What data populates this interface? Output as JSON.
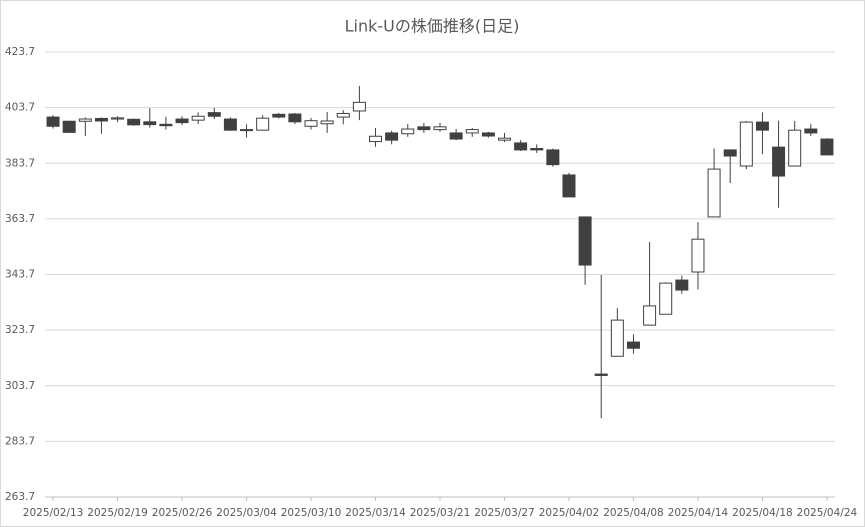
{
  "chart_data": {
    "type": "candlestick",
    "title": "Link-Uの株価推移(日足)",
    "categories": [
      "2025/02/13",
      null,
      null,
      null,
      "2025/02/19",
      null,
      null,
      null,
      "2025/02/26",
      null,
      null,
      null,
      "2025/03/04",
      null,
      null,
      null,
      "2025/03/10",
      null,
      null,
      null,
      "2025/03/14",
      null,
      null,
      null,
      "2025/03/21",
      null,
      null,
      null,
      "2025/03/27",
      null,
      null,
      null,
      "2025/04/02",
      null,
      null,
      null,
      "2025/04/08",
      null,
      null,
      null,
      "2025/04/14",
      null,
      null,
      null,
      "2025/04/18",
      null,
      null,
      null,
      "2025/04/24"
    ],
    "open": [
      400.3,
      398.8,
      398.8,
      399.8,
      399.6,
      399.5,
      398.6,
      397.7,
      399.6,
      399.2,
      401.9,
      399.6,
      395.8,
      395.6,
      401.3,
      401.4,
      397.0,
      397.9,
      400.3,
      402.5,
      391.5,
      394.6,
      394.3,
      396.8,
      395.8,
      394.6,
      394.6,
      394.6,
      392.0,
      391.0,
      389.0,
      388.5,
      379.5,
      364.4,
      307.9,
      314.3,
      319.4,
      325.5,
      329.4,
      341.7,
      344.6,
      364.4,
      388.5,
      382.7,
      398.5,
      389.5,
      382.7,
      396.0,
      392.4
    ],
    "high": [
      401.0,
      399.0,
      400.2,
      400.2,
      400.6,
      399.8,
      403.5,
      400.4,
      400.6,
      402.0,
      403.6,
      400.2,
      397.7,
      401.0,
      401.8,
      401.8,
      400.0,
      402.1,
      402.8,
      411.5,
      396.4,
      395.4,
      397.8,
      398.2,
      398.2,
      396.0,
      396.4,
      395.0,
      394.6,
      392.0,
      390.5,
      389.0,
      380.2,
      364.4,
      343.5,
      331.6,
      322.2,
      355.4,
      340.9,
      343.3,
      362.5,
      389.0,
      388.5,
      398.9,
      402.0,
      399.0,
      398.9,
      397.8,
      392.7
    ],
    "low": [
      396.2,
      394.6,
      393.5,
      394.3,
      398.5,
      397.2,
      396.5,
      395.8,
      397.4,
      397.8,
      399.6,
      395.3,
      392.9,
      395.4,
      399.8,
      397.8,
      395.8,
      394.6,
      397.7,
      399.2,
      389.6,
      390.5,
      393.2,
      394.6,
      395.0,
      392.0,
      393.2,
      392.9,
      391.3,
      388.1,
      387.4,
      382.5,
      371.6,
      340.0,
      292.0,
      314.3,
      315.2,
      325.5,
      329.4,
      336.7,
      338.3,
      364.4,
      376.6,
      381.6,
      387.0,
      367.7,
      382.7,
      393.5,
      386.7
    ],
    "close": [
      397.0,
      394.8,
      399.6,
      398.9,
      400.0,
      397.5,
      397.6,
      397.2,
      398.3,
      400.6,
      400.6,
      395.6,
      395.6,
      399.9,
      400.3,
      398.6,
      399.0,
      398.9,
      401.6,
      405.6,
      393.4,
      392.0,
      396.0,
      395.8,
      396.8,
      392.4,
      395.8,
      393.5,
      392.7,
      388.5,
      388.5,
      383.2,
      371.6,
      347.1,
      307.4,
      327.3,
      317.2,
      332.4,
      340.6,
      338.1,
      356.4,
      381.6,
      386.3,
      398.5,
      395.6,
      379.1,
      395.6,
      394.6,
      386.7
    ],
    "color": "#404040",
    "up_fill": "#ffffff",
    "ylim": [
      263.7,
      423.7
    ],
    "yticks": [
      263.7,
      283.7,
      303.7,
      323.7,
      343.7,
      363.7,
      383.7,
      403.7,
      423.7
    ],
    "grid": true
  }
}
